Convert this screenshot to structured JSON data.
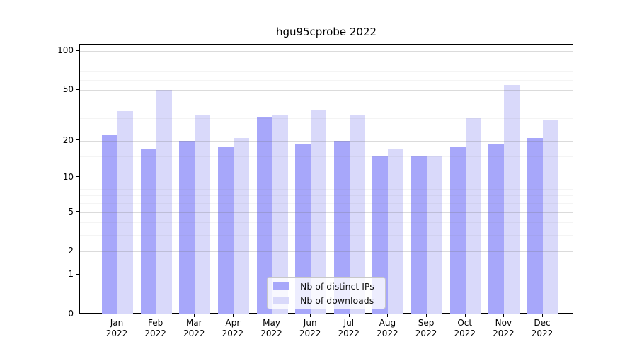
{
  "chart_data": {
    "type": "bar",
    "title": "hgu95cprobe 2022",
    "categories": [
      {
        "month": "Jan",
        "year": "2022"
      },
      {
        "month": "Feb",
        "year": "2022"
      },
      {
        "month": "Mar",
        "year": "2022"
      },
      {
        "month": "Apr",
        "year": "2022"
      },
      {
        "month": "May",
        "year": "2022"
      },
      {
        "month": "Jun",
        "year": "2022"
      },
      {
        "month": "Jul",
        "year": "2022"
      },
      {
        "month": "Aug",
        "year": "2022"
      },
      {
        "month": "Sep",
        "year": "2022"
      },
      {
        "month": "Oct",
        "year": "2022"
      },
      {
        "month": "Nov",
        "year": "2022"
      },
      {
        "month": "Dec",
        "year": "2022"
      }
    ],
    "series": [
      {
        "name": "Nb of distinct IPs",
        "color": "#a7a7fa",
        "values": [
          22,
          17,
          20,
          18,
          31,
          19,
          20,
          15,
          15,
          18,
          19,
          21
        ]
      },
      {
        "name": "Nb of downloads",
        "color": "#d9d9fa",
        "values": [
          34,
          50,
          32,
          21,
          32,
          35,
          32,
          17,
          15,
          30,
          55,
          29
        ]
      }
    ],
    "yscale": "log1p",
    "ylim": [
      0,
      112
    ],
    "y_major_ticks": [
      0,
      1,
      2,
      5,
      10,
      20,
      50,
      100
    ],
    "y_minor_gridlines": [
      3,
      4,
      6,
      7,
      8,
      9,
      15,
      30,
      40,
      60,
      70,
      80,
      90
    ],
    "grid": true,
    "legend_position": "lower center",
    "xlabel": "",
    "ylabel": ""
  }
}
